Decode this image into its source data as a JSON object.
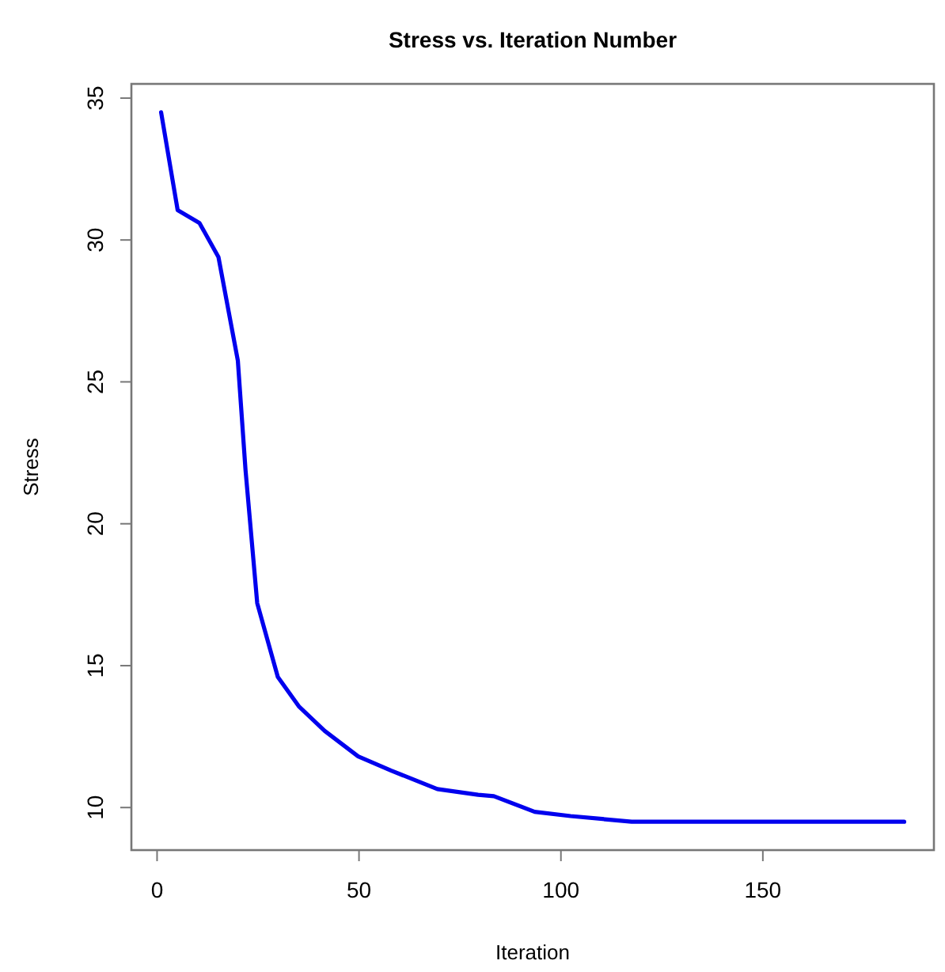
{
  "chart_data": {
    "type": "line",
    "title": "Stress vs. Iteration Number",
    "xlabel": "Iteration",
    "ylabel": "Stress",
    "series": [
      {
        "color": "#0000ee",
        "x": [
          1,
          5.1,
          10.5,
          15.2,
          20,
          21.9,
          24.8,
          29.9,
          35.2,
          41.5,
          49.8,
          58,
          69.4,
          79.5,
          83.4,
          93.5,
          102.4,
          117.5,
          185
        ],
        "values": [
          34.5,
          31.05,
          30.6,
          29.4,
          25.75,
          21.9,
          17.2,
          14.6,
          13.55,
          12.7,
          11.8,
          11.3,
          10.65,
          10.45,
          10.4,
          9.85,
          9.7,
          9.5,
          9.5
        ]
      }
    ],
    "xlim": [
      -6.36,
      192.36
    ],
    "ylim": [
      8.5,
      35.5
    ],
    "xticks": [
      0,
      50,
      100,
      150
    ],
    "yticks": [
      10,
      15,
      20,
      25,
      30,
      35
    ],
    "grid": false,
    "marker": "none",
    "line_style": "solid"
  }
}
